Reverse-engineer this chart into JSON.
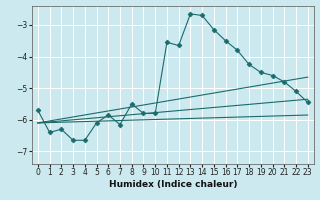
{
  "xlabel": "Humidex (Indice chaleur)",
  "background_color": "#cce9ef",
  "grid_color": "#ffffff",
  "line_color": "#1a6b6b",
  "ylim": [
    -7.4,
    -2.4
  ],
  "xlim": [
    -0.5,
    23.5
  ],
  "yticks": [
    -7,
    -6,
    -5,
    -4,
    -3
  ],
  "xtick_labels": [
    "0",
    "1",
    "2",
    "3",
    "4",
    "5",
    "6",
    "7",
    "8",
    "9",
    "1011",
    "1213",
    "1415",
    "1617",
    "1819",
    "2021",
    "2223"
  ],
  "series": [
    {
      "x": [
        0,
        1,
        2,
        3,
        4,
        5,
        6,
        7,
        8,
        9,
        10,
        11,
        12,
        13,
        14,
        15,
        16,
        17,
        18,
        19,
        20,
        21,
        22,
        23
      ],
      "y": [
        -5.7,
        -6.4,
        -6.3,
        -6.65,
        -6.65,
        -6.1,
        -5.85,
        -6.15,
        -5.5,
        -5.8,
        -5.8,
        -3.55,
        -3.65,
        -2.65,
        -2.7,
        -3.15,
        -3.5,
        -3.8,
        -4.25,
        -4.5,
        -4.6,
        -4.8,
        -5.1,
        -5.45
      ],
      "marker": "D",
      "markersize": 2.5
    },
    {
      "x": [
        0,
        23
      ],
      "y": [
        -6.1,
        -4.65
      ],
      "marker": null
    },
    {
      "x": [
        0,
        23
      ],
      "y": [
        -6.1,
        -5.35
      ],
      "marker": null
    },
    {
      "x": [
        0,
        23
      ],
      "y": [
        -6.1,
        -5.85
      ],
      "marker": null
    }
  ]
}
